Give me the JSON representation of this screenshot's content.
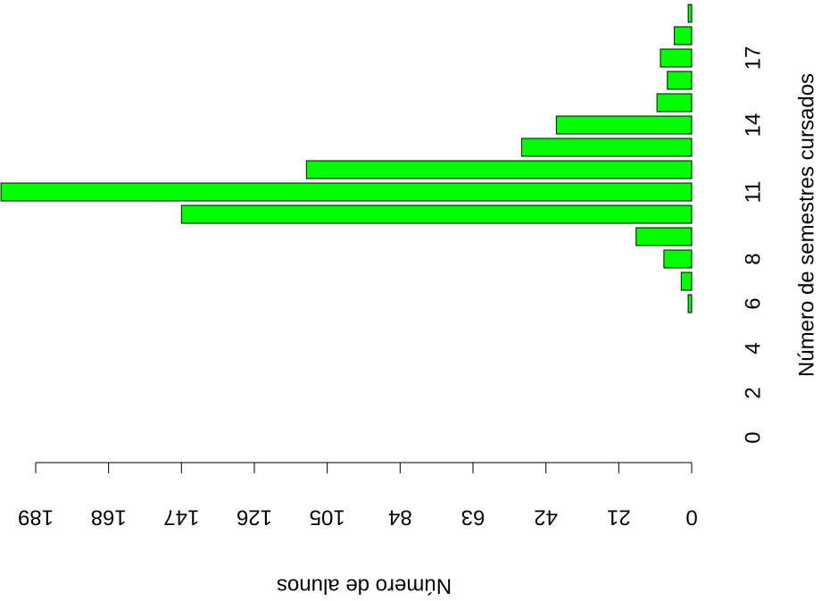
{
  "chart_data": {
    "type": "bar",
    "orientation": "horizontal",
    "x_label": "Número de alunos",
    "y_label": "Número de semestres cursados",
    "categories": [
      "0",
      null,
      "2",
      null,
      "4",
      null,
      "6",
      null,
      "8",
      null,
      null,
      "11",
      null,
      null,
      "14",
      null,
      null,
      "17",
      null,
      null
    ],
    "values": [
      0,
      0,
      0,
      0,
      0,
      0,
      1,
      3,
      8,
      16,
      147,
      199,
      111,
      49,
      39,
      10,
      7,
      9,
      5,
      1
    ],
    "color": "#00ff00",
    "xlim": [
      0,
      189
    ],
    "xticks": [
      0,
      21,
      42,
      63,
      84,
      105,
      126,
      147,
      168,
      189
    ]
  }
}
